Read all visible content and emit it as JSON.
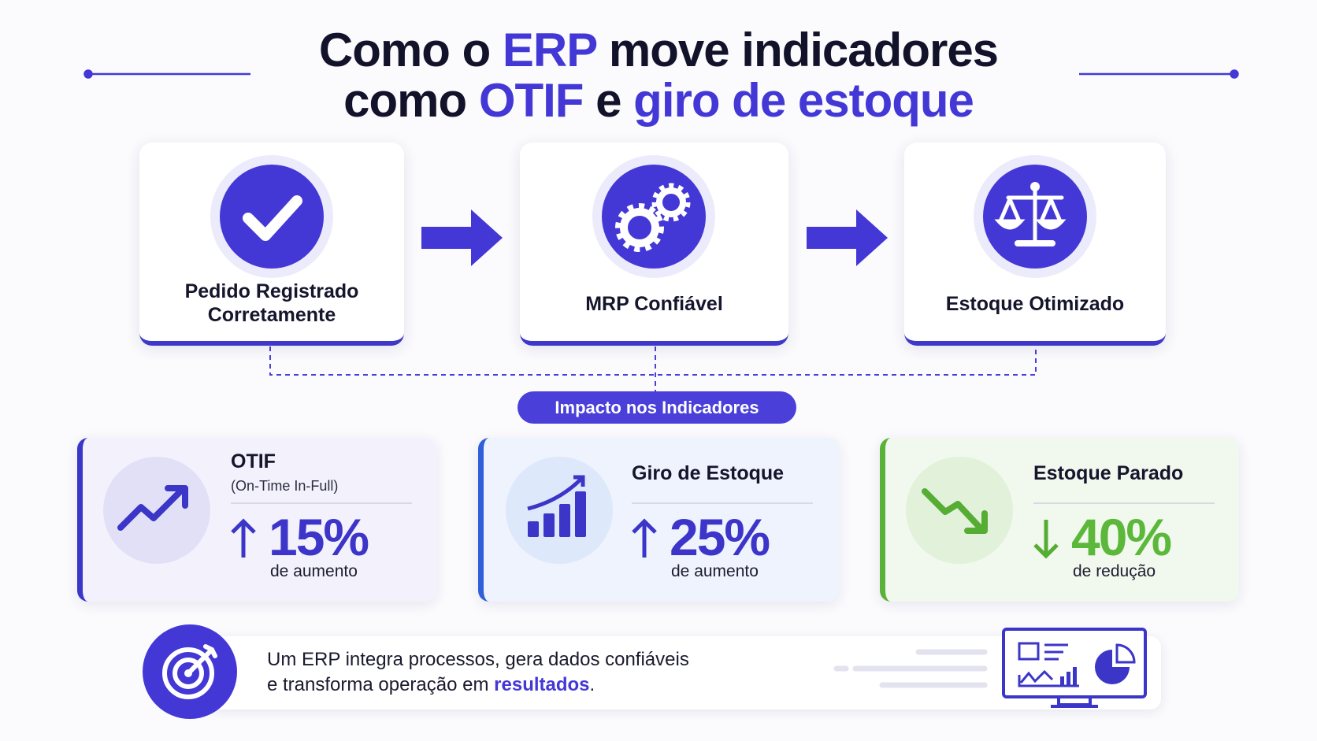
{
  "title": {
    "lines": [
      [
        "Como o",
        "ERP",
        "move indicadores"
      ],
      [
        "como",
        "OTIF",
        "e",
        "giro de estoque"
      ]
    ]
  },
  "steps": [
    {
      "label": [
        "Pedido Registrado",
        "Corretamente"
      ]
    },
    {
      "label": [
        "MRP Confiável"
      ]
    },
    {
      "label": [
        "Estoque Otimizado"
      ]
    }
  ],
  "badge": "Impacto nos Indicadores",
  "metrics": [
    {
      "title": "OTIF",
      "subtitle": "(On-Time In-Full)",
      "value": "15%",
      "note": "de aumento"
    },
    {
      "title": "Giro de Estoque",
      "value": "25%",
      "note": "de aumento"
    },
    {
      "title": "Estoque Parado",
      "value": "40%",
      "note": "de redução"
    }
  ],
  "footer": {
    "lines": [
      [
        "Um ERP integra processos, gera dados confiáveis"
      ],
      [
        "e transforma operação em",
        "resultados",
        "."
      ]
    ]
  }
}
